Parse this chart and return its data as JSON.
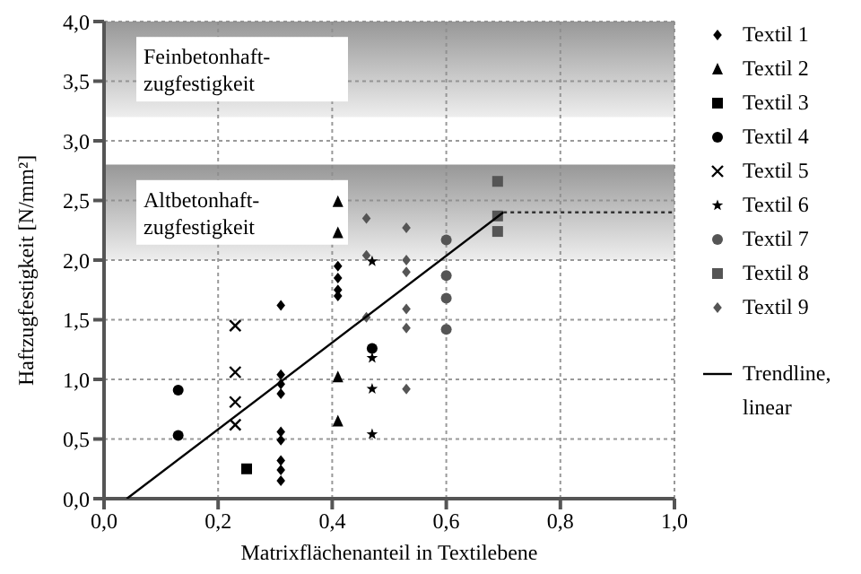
{
  "chart_data": {
    "type": "scatter",
    "xlabel": "Matrixflächenanteil in Textilebene",
    "ylabel": "Haftzugfestigkeit [N/mm²]",
    "xlim": [
      0,
      1
    ],
    "xticks": [
      {
        "value": 0,
        "label": "0,0"
      },
      {
        "value": 0.2,
        "label": "0,2"
      },
      {
        "value": 0.4,
        "label": "0,4"
      },
      {
        "value": 0.6,
        "label": "0,6"
      },
      {
        "value": 0.8,
        "label": "0,8"
      },
      {
        "value": 1,
        "label": "1,0"
      }
    ],
    "ylim": [
      0,
      4
    ],
    "yticks": [
      {
        "value": 0,
        "label": "0,0"
      },
      {
        "value": 0.5,
        "label": "0,5"
      },
      {
        "value": 1,
        "label": "1,0"
      },
      {
        "value": 1.5,
        "label": "1,5"
      },
      {
        "value": 2,
        "label": "2,0"
      },
      {
        "value": 2.5,
        "label": "2,5"
      },
      {
        "value": 3,
        "label": "3,0"
      },
      {
        "value": 3.5,
        "label": "3,5"
      },
      {
        "value": 4,
        "label": "4,0"
      }
    ],
    "grid": true,
    "legend": "right",
    "bands": [
      {
        "axis": "y",
        "from": 3.2,
        "to": 4.0,
        "label": "Feinbetonhaft-zugfestigkeit",
        "color": "#8c8c8c"
      },
      {
        "axis": "y",
        "from": 2.0,
        "to": 2.8,
        "label": "Altbetonhaft-zugfestigkeit",
        "color": "#8c8c8c"
      }
    ],
    "series": [
      {
        "name": "Textil 1",
        "color": "#000000",
        "marker": "diamond",
        "x": [
          0.31,
          0.31,
          0.31,
          0.31,
          0.31,
          0.31,
          0.31,
          0.31,
          0.31,
          0.41,
          0.41,
          0.41,
          0.41
        ],
        "values": [
          1.62,
          1.04,
          0.96,
          0.88,
          0.56,
          0.49,
          0.32,
          0.24,
          0.15,
          1.95,
          1.85,
          1.75,
          1.7
        ]
      },
      {
        "name": "Textil 2",
        "color": "#000000",
        "marker": "triangle",
        "x": [
          0.41,
          0.41,
          0.41,
          0.41
        ],
        "values": [
          2.49,
          2.23,
          1.02,
          0.65
        ]
      },
      {
        "name": "Textil 3",
        "color": "#000000",
        "marker": "square",
        "x": [
          0.25
        ],
        "values": [
          0.25
        ]
      },
      {
        "name": "Textil 4",
        "color": "#000000",
        "marker": "circle",
        "x": [
          0.13,
          0.13,
          0.47
        ],
        "values": [
          0.91,
          0.53,
          1.26
        ]
      },
      {
        "name": "Textil 5",
        "color": "#000000",
        "marker": "cross",
        "x": [
          0.23,
          0.23,
          0.23,
          0.23
        ],
        "values": [
          1.45,
          1.06,
          0.81,
          0.62
        ]
      },
      {
        "name": "Textil 6",
        "color": "#000000",
        "marker": "star",
        "x": [
          0.47,
          0.47,
          0.47,
          0.47
        ],
        "values": [
          1.99,
          1.18,
          0.92,
          0.54
        ]
      },
      {
        "name": "Textil 7",
        "color": "#555555",
        "marker": "circle",
        "x": [
          0.6,
          0.6,
          0.6,
          0.6
        ],
        "values": [
          2.17,
          1.87,
          1.68,
          1.42
        ]
      },
      {
        "name": "Textil 8",
        "color": "#555555",
        "marker": "square",
        "x": [
          0.69,
          0.69,
          0.69
        ],
        "values": [
          2.66,
          2.37,
          2.24
        ]
      },
      {
        "name": "Textil 9",
        "color": "#555555",
        "marker": "diamond",
        "x": [
          0.53,
          0.53,
          0.53,
          0.53,
          0.53,
          0.53,
          0.46,
          0.46,
          0.46
        ],
        "values": [
          2.27,
          2.0,
          1.9,
          1.59,
          1.43,
          0.92,
          2.35,
          2.04,
          1.52
        ]
      },
      {
        "name": "Trendline, linear",
        "type": "line",
        "color": "#000000",
        "marker": "none",
        "line_style": "solid",
        "x": [
          0.04,
          0.7
        ],
        "values": [
          0,
          2.4
        ]
      },
      {
        "type": "line",
        "color": "#333333",
        "marker": "none",
        "line_style": "dotted",
        "x": [
          0.7,
          1.0
        ],
        "values": [
          2.4,
          2.4
        ]
      }
    ]
  }
}
